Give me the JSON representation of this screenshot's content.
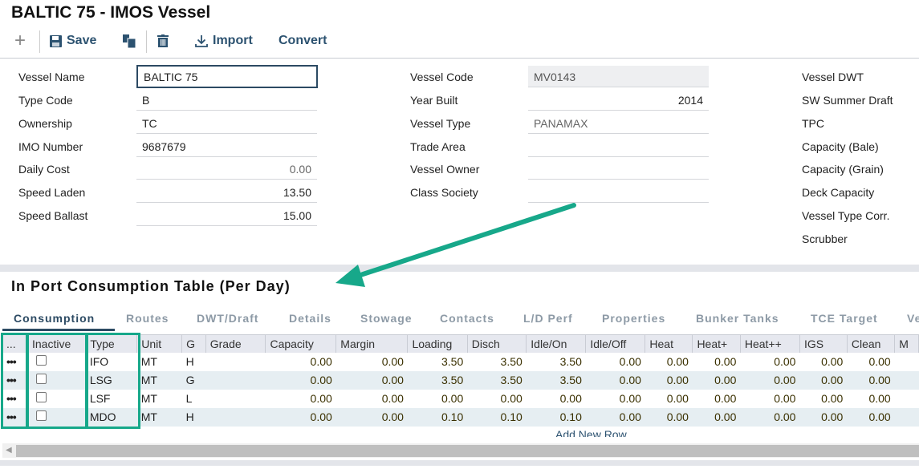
{
  "title": "BALTIC 75 - IMOS Vessel",
  "toolbar": {
    "save": "Save",
    "import": "Import",
    "convert": "Convert"
  },
  "form": {
    "left": [
      {
        "label": "Vessel Name",
        "value": "BALTIC 75"
      },
      {
        "label": "Type Code",
        "value": "B"
      },
      {
        "label": "Ownership",
        "value": "TC"
      },
      {
        "label": "IMO Number",
        "value": "9687679"
      },
      {
        "label": "Daily Cost",
        "value": "0.00"
      },
      {
        "label": "Speed Laden",
        "value": "13.50"
      },
      {
        "label": "Speed Ballast",
        "value": "15.00"
      }
    ],
    "middle": [
      {
        "label": "Vessel Code",
        "value": "MV0143"
      },
      {
        "label": "Year Built",
        "value": "2014"
      },
      {
        "label": "Vessel Type",
        "value": "PANAMAX"
      },
      {
        "label": "Trade Area",
        "value": ""
      },
      {
        "label": "Vessel Owner",
        "value": ""
      },
      {
        "label": "Class Society",
        "value": ""
      }
    ],
    "right": [
      "Vessel DWT",
      "SW Summer Draft",
      "TPC",
      "Capacity (Bale)",
      "Capacity (Grain)",
      "Deck Capacity",
      "Vessel Type Corr.",
      "Scrubber"
    ]
  },
  "section_title": "In Port Consumption Table (Per Day)",
  "tabs": [
    "Consumption",
    "Routes",
    "DWT/Draft",
    "Details",
    "Stowage",
    "Contacts",
    "L/D Perf",
    "Properties",
    "Bunker Tanks",
    "TCE Target",
    "Ve"
  ],
  "table": {
    "headers": [
      "...",
      "Inactive",
      "Type",
      "Unit",
      "G",
      "Grade",
      "Capacity",
      "Margin",
      "Loading",
      "Disch",
      "Idle/On",
      "Idle/Off",
      "Heat",
      "Heat+",
      "Heat++",
      "IGS",
      "Clean",
      "M"
    ],
    "rows": [
      [
        "IFO",
        "MT",
        "H",
        "",
        "0.00",
        "0.00",
        "3.50",
        "3.50",
        "3.50",
        "0.00",
        "0.00",
        "0.00",
        "0.00",
        "0.00",
        "0.00"
      ],
      [
        "LSG",
        "MT",
        "G",
        "",
        "0.00",
        "0.00",
        "3.50",
        "3.50",
        "3.50",
        "0.00",
        "0.00",
        "0.00",
        "0.00",
        "0.00",
        "0.00"
      ],
      [
        "LSF",
        "MT",
        "L",
        "",
        "0.00",
        "0.00",
        "0.00",
        "0.00",
        "0.00",
        "0.00",
        "0.00",
        "0.00",
        "0.00",
        "0.00",
        "0.00"
      ],
      [
        "MDO",
        "MT",
        "H",
        "",
        "0.00",
        "0.00",
        "0.10",
        "0.10",
        "0.10",
        "0.00",
        "0.00",
        "0.00",
        "0.00",
        "0.00",
        "0.00"
      ]
    ],
    "add_row": "Add New Row"
  },
  "colors": {
    "highlight": "#17a88a",
    "accent": "#2c5270"
  }
}
